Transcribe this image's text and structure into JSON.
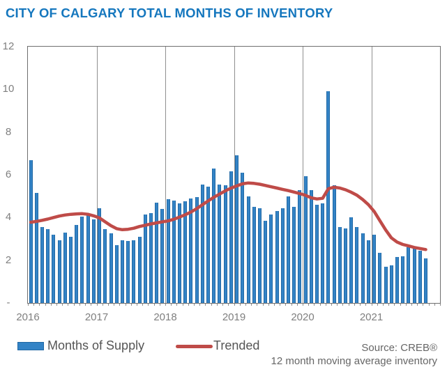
{
  "title": "CITY OF CALGARY TOTAL MONTHS OF INVENTORY",
  "legend": {
    "months_of_supply": "Months of Supply",
    "trended": "Trended"
  },
  "source": {
    "line1": "Source: CREB®",
    "line2": "12 month moving average inventory"
  },
  "colors": {
    "title_blue": "#1577be",
    "bar_fill": "#3383c6",
    "bar_edge": "#2068a4",
    "trend_red": "#bf4b48",
    "axis_text": "#7f7f7f",
    "legend_text": "#555555",
    "source_text": "#666666",
    "gridline": "#8f8f8f",
    "plot_border": "#6e6e6e"
  },
  "chart_data": {
    "type": "bar",
    "title": "CITY OF CALGARY TOTAL MONTHS OF INVENTORY",
    "xlabel": "",
    "ylabel": "",
    "x_axis": {
      "tick_labels": [
        "2016",
        "2017",
        "2018",
        "2019",
        "2020",
        "2021"
      ],
      "months_per_year": 12,
      "total_slots": 72
    },
    "y_axis": {
      "min": 0,
      "max": 12,
      "ticks": [
        12,
        10,
        8,
        6,
        4,
        2
      ],
      "zero_label": "-"
    },
    "grid": "vertical-year-lines-only",
    "legend_position": "bottom",
    "months": [
      "2016-01",
      "2016-02",
      "2016-03",
      "2016-04",
      "2016-05",
      "2016-06",
      "2016-07",
      "2016-08",
      "2016-09",
      "2016-10",
      "2016-11",
      "2016-12",
      "2017-01",
      "2017-02",
      "2017-03",
      "2017-04",
      "2017-05",
      "2017-06",
      "2017-07",
      "2017-08",
      "2017-09",
      "2017-10",
      "2017-11",
      "2017-12",
      "2018-01",
      "2018-02",
      "2018-03",
      "2018-04",
      "2018-05",
      "2018-06",
      "2018-07",
      "2018-08",
      "2018-09",
      "2018-10",
      "2018-11",
      "2018-12",
      "2019-01",
      "2019-02",
      "2019-03",
      "2019-04",
      "2019-05",
      "2019-06",
      "2019-07",
      "2019-08",
      "2019-09",
      "2019-10",
      "2019-11",
      "2019-12",
      "2020-01",
      "2020-02",
      "2020-03",
      "2020-04",
      "2020-05",
      "2020-06",
      "2020-07",
      "2020-08",
      "2020-09",
      "2020-10",
      "2020-11",
      "2020-12",
      "2021-01",
      "2021-02",
      "2021-03",
      "2021-04",
      "2021-05",
      "2021-06",
      "2021-07",
      "2021-08",
      "2021-09",
      "2021-10"
    ],
    "series": [
      {
        "name": "Months of Supply",
        "type": "bar",
        "color": "#3383c6",
        "values": [
          6.7,
          5.15,
          3.55,
          3.45,
          3.2,
          2.95,
          3.3,
          3.1,
          3.65,
          4.05,
          4.15,
          3.9,
          4.45,
          3.45,
          3.25,
          2.7,
          2.95,
          2.9,
          2.95,
          3.1,
          4.15,
          4.2,
          4.7,
          4.4,
          4.85,
          4.8,
          4.65,
          4.75,
          4.9,
          4.95,
          5.55,
          5.45,
          6.3,
          5.55,
          5.5,
          6.15,
          6.9,
          6.1,
          5.0,
          4.5,
          4.45,
          3.85,
          4.15,
          4.3,
          4.45,
          5.0,
          4.5,
          5.3,
          5.95,
          5.3,
          4.6,
          4.65,
          9.9,
          5.5,
          3.55,
          3.5,
          4.0,
          3.55,
          3.25,
          2.95,
          3.2,
          2.35,
          1.7,
          1.75,
          2.15,
          2.2,
          2.6,
          2.55,
          2.45,
          2.1
        ]
      },
      {
        "name": "Trended",
        "type": "line",
        "color": "#bf4b48",
        "values": [
          3.78,
          3.82,
          3.87,
          3.93,
          4.0,
          4.07,
          4.12,
          4.15,
          4.17,
          4.18,
          4.15,
          4.08,
          3.98,
          3.8,
          3.62,
          3.48,
          3.43,
          3.45,
          3.5,
          3.58,
          3.64,
          3.7,
          3.75,
          3.8,
          3.84,
          3.92,
          4.02,
          4.13,
          4.26,
          4.42,
          4.6,
          4.78,
          4.95,
          5.1,
          5.25,
          5.38,
          5.48,
          5.58,
          5.62,
          5.6,
          5.56,
          5.5,
          5.44,
          5.38,
          5.32,
          5.26,
          5.19,
          5.12,
          5.04,
          4.92,
          4.87,
          4.9,
          5.35,
          5.42,
          5.38,
          5.3,
          5.18,
          5.04,
          4.84,
          4.6,
          4.28,
          3.85,
          3.42,
          3.05,
          2.85,
          2.74,
          2.67,
          2.6,
          2.55,
          2.5
        ]
      }
    ]
  }
}
